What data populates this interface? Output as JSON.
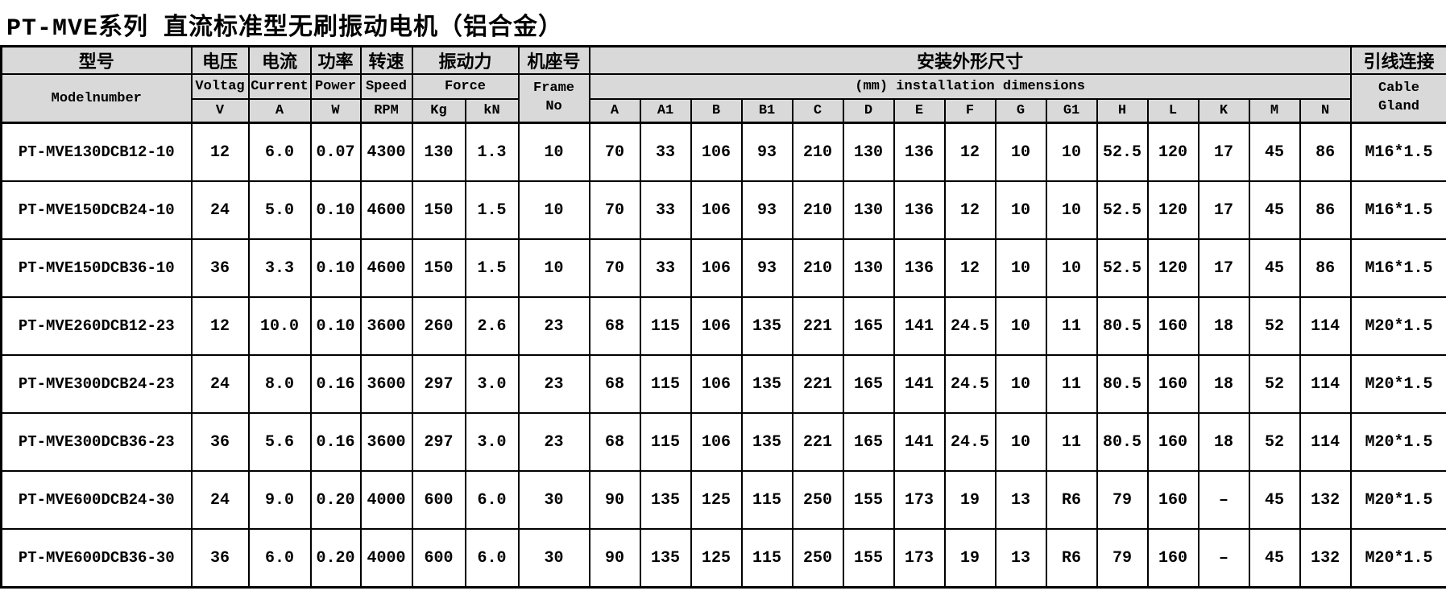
{
  "title": "PT-MVE系列 直流标准型无刷振动电机（铝合金）",
  "colors": {
    "header_bg": "#d9d9d9",
    "border": "#000000",
    "row_bg": "#ffffff",
    "text": "#000000"
  },
  "table": {
    "header": {
      "model": {
        "cn": "型号",
        "en": "Modelnumber"
      },
      "voltage": {
        "cn": "电压",
        "en": "Voltag",
        "unit": "V"
      },
      "current": {
        "cn": "电流",
        "en": "Current",
        "unit": "A"
      },
      "power": {
        "cn": "功率",
        "en": "Power",
        "unit": "W"
      },
      "speed": {
        "cn": "转速",
        "en": "Speed",
        "unit": "RPM"
      },
      "force": {
        "cn": "振动力",
        "en": "Force",
        "units": [
          "Kg",
          "kN"
        ]
      },
      "frame": {
        "cn": "机座号",
        "en_line1": "Frame",
        "en_line2": "No"
      },
      "dimensions": {
        "cn": "安装外形尺寸",
        "en": "(mm) installation dimensions",
        "subcols": [
          "A",
          "A1",
          "B",
          "B1",
          "C",
          "D",
          "E",
          "F",
          "G",
          "G1",
          "H",
          "L",
          "K",
          "M",
          "N"
        ]
      },
      "cable": {
        "cn": "引线连接",
        "en_line1": "Cable",
        "en_line2": "Gland"
      }
    },
    "rows": [
      {
        "model": "PT-MVE130DCB12-10",
        "voltage": "12",
        "current": "6.0",
        "power": "0.07",
        "speed": "4300",
        "force_kg": "130",
        "force_kn": "1.3",
        "frame": "10",
        "dims": [
          "70",
          "33",
          "106",
          "93",
          "210",
          "130",
          "136",
          "12",
          "10",
          "10",
          "52.5",
          "120",
          "17",
          "45",
          "86"
        ],
        "cable": "M16*1.5"
      },
      {
        "model": "PT-MVE150DCB24-10",
        "voltage": "24",
        "current": "5.0",
        "power": "0.10",
        "speed": "4600",
        "force_kg": "150",
        "force_kn": "1.5",
        "frame": "10",
        "dims": [
          "70",
          "33",
          "106",
          "93",
          "210",
          "130",
          "136",
          "12",
          "10",
          "10",
          "52.5",
          "120",
          "17",
          "45",
          "86"
        ],
        "cable": "M16*1.5"
      },
      {
        "model": "PT-MVE150DCB36-10",
        "voltage": "36",
        "current": "3.3",
        "power": "0.10",
        "speed": "4600",
        "force_kg": "150",
        "force_kn": "1.5",
        "frame": "10",
        "dims": [
          "70",
          "33",
          "106",
          "93",
          "210",
          "130",
          "136",
          "12",
          "10",
          "10",
          "52.5",
          "120",
          "17",
          "45",
          "86"
        ],
        "cable": "M16*1.5"
      },
      {
        "model": "PT-MVE260DCB12-23",
        "voltage": "12",
        "current": "10.0",
        "power": "0.10",
        "speed": "3600",
        "force_kg": "260",
        "force_kn": "2.6",
        "frame": "23",
        "dims": [
          "68",
          "115",
          "106",
          "135",
          "221",
          "165",
          "141",
          "24.5",
          "10",
          "11",
          "80.5",
          "160",
          "18",
          "52",
          "114"
        ],
        "cable": "M20*1.5"
      },
      {
        "model": "PT-MVE300DCB24-23",
        "voltage": "24",
        "current": "8.0",
        "power": "0.16",
        "speed": "3600",
        "force_kg": "297",
        "force_kn": "3.0",
        "frame": "23",
        "dims": [
          "68",
          "115",
          "106",
          "135",
          "221",
          "165",
          "141",
          "24.5",
          "10",
          "11",
          "80.5",
          "160",
          "18",
          "52",
          "114"
        ],
        "cable": "M20*1.5"
      },
      {
        "model": "PT-MVE300DCB36-23",
        "voltage": "36",
        "current": "5.6",
        "power": "0.16",
        "speed": "3600",
        "force_kg": "297",
        "force_kn": "3.0",
        "frame": "23",
        "dims": [
          "68",
          "115",
          "106",
          "135",
          "221",
          "165",
          "141",
          "24.5",
          "10",
          "11",
          "80.5",
          "160",
          "18",
          "52",
          "114"
        ],
        "cable": "M20*1.5"
      },
      {
        "model": "PT-MVE600DCB24-30",
        "voltage": "24",
        "current": "9.0",
        "power": "0.20",
        "speed": "4000",
        "force_kg": "600",
        "force_kn": "6.0",
        "frame": "30",
        "dims": [
          "90",
          "135",
          "125",
          "115",
          "250",
          "155",
          "173",
          "19",
          "13",
          "R6",
          "79",
          "160",
          "–",
          "45",
          "132"
        ],
        "cable": "M20*1.5"
      },
      {
        "model": "PT-MVE600DCB36-30",
        "voltage": "36",
        "current": "6.0",
        "power": "0.20",
        "speed": "4000",
        "force_kg": "600",
        "force_kn": "6.0",
        "frame": "30",
        "dims": [
          "90",
          "135",
          "125",
          "115",
          "250",
          "155",
          "173",
          "19",
          "13",
          "R6",
          "79",
          "160",
          "–",
          "45",
          "132"
        ],
        "cable": "M20*1.5"
      }
    ]
  }
}
